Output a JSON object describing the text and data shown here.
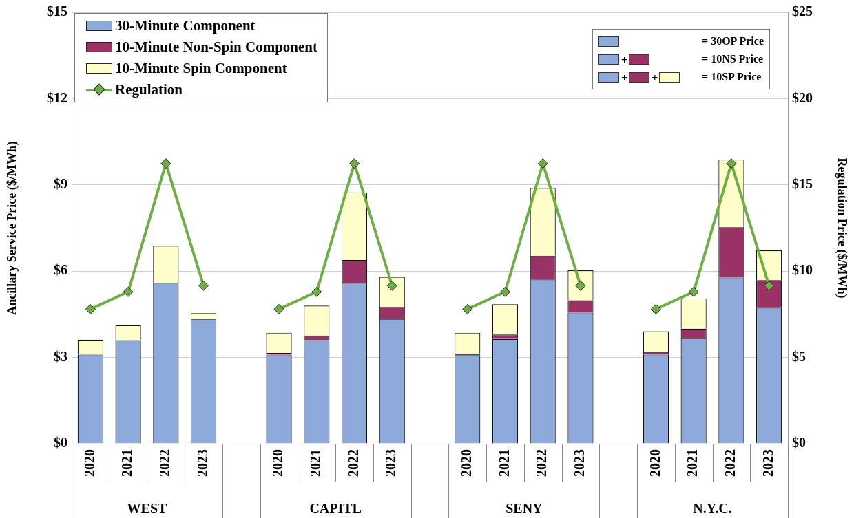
{
  "chart_data": {
    "type": "bar",
    "stacked": true,
    "categories": [
      "2020",
      "2021",
      "2022",
      "2023",
      null,
      "2020",
      "2021",
      "2022",
      "2023",
      null,
      "2020",
      "2021",
      "2022",
      "2023",
      null,
      "2020",
      "2021",
      "2022",
      "2023"
    ],
    "ylabel": "Ancillary Service Price ($/MWh)",
    "y2label": "Regulation Price ($/MWh)",
    "ylim": [
      0,
      15
    ],
    "yticks": [
      {
        "value": 0,
        "label": "$0"
      },
      {
        "value": 3,
        "label": "$3"
      },
      {
        "value": 6,
        "label": "$6"
      },
      {
        "value": 9,
        "label": "$9"
      },
      {
        "value": 12,
        "label": "$12"
      },
      {
        "value": 15,
        "label": "$15"
      }
    ],
    "y2lim": [
      0,
      25
    ],
    "y2ticks": [
      {
        "value": 0,
        "label": "$0"
      },
      {
        "value": 5,
        "label": "$5"
      },
      {
        "value": 10,
        "label": "$10"
      },
      {
        "value": 15,
        "label": "$15"
      },
      {
        "value": 20,
        "label": "$20"
      },
      {
        "value": 25,
        "label": "$25"
      }
    ],
    "grid": "y",
    "legend": "top left",
    "marker": "diamond",
    "line_style": "solid",
    "series": [
      {
        "name": "30-Minute Component",
        "color": "#8eaadb",
        "values": [
          3.1,
          3.6,
          5.59,
          4.34,
          null,
          3.1,
          3.6,
          5.59,
          4.34,
          null,
          3.08,
          3.64,
          5.71,
          4.56,
          null,
          3.1,
          3.67,
          5.78,
          4.73
        ]
      },
      {
        "name": "10-Minute Non-Spin Component",
        "color": "#993366",
        "values": [
          0,
          0,
          0,
          0,
          null,
          0.06,
          0.16,
          0.8,
          0.42,
          null,
          0.06,
          0.16,
          0.83,
          0.43,
          null,
          0.09,
          0.33,
          1.75,
          0.96
        ]
      },
      {
        "name": "10-Minute Spin Component",
        "color": "#ffffcc",
        "values": [
          0.52,
          0.52,
          1.29,
          0.2,
          null,
          0.7,
          1.04,
          2.35,
          1.04,
          null,
          0.72,
          1.05,
          2.35,
          1.04,
          null,
          0.72,
          1.05,
          2.35,
          1.03
        ]
      },
      {
        "name": "Regulation",
        "type": "line",
        "axis": "y2",
        "color": "#70ad47",
        "values": [
          7.8,
          8.8,
          16.24,
          9.16,
          null,
          7.8,
          8.8,
          16.24,
          9.16,
          null,
          7.8,
          8.8,
          16.24,
          9.16,
          null,
          7.8,
          8.8,
          16.24,
          9.16
        ]
      }
    ],
    "annotations": [
      "WEST",
      "CAPITL",
      "SENY",
      "N.Y.C.",
      "= 30OP Price",
      "= 10NS Price",
      "= 10SP Price",
      "+"
    ]
  }
}
